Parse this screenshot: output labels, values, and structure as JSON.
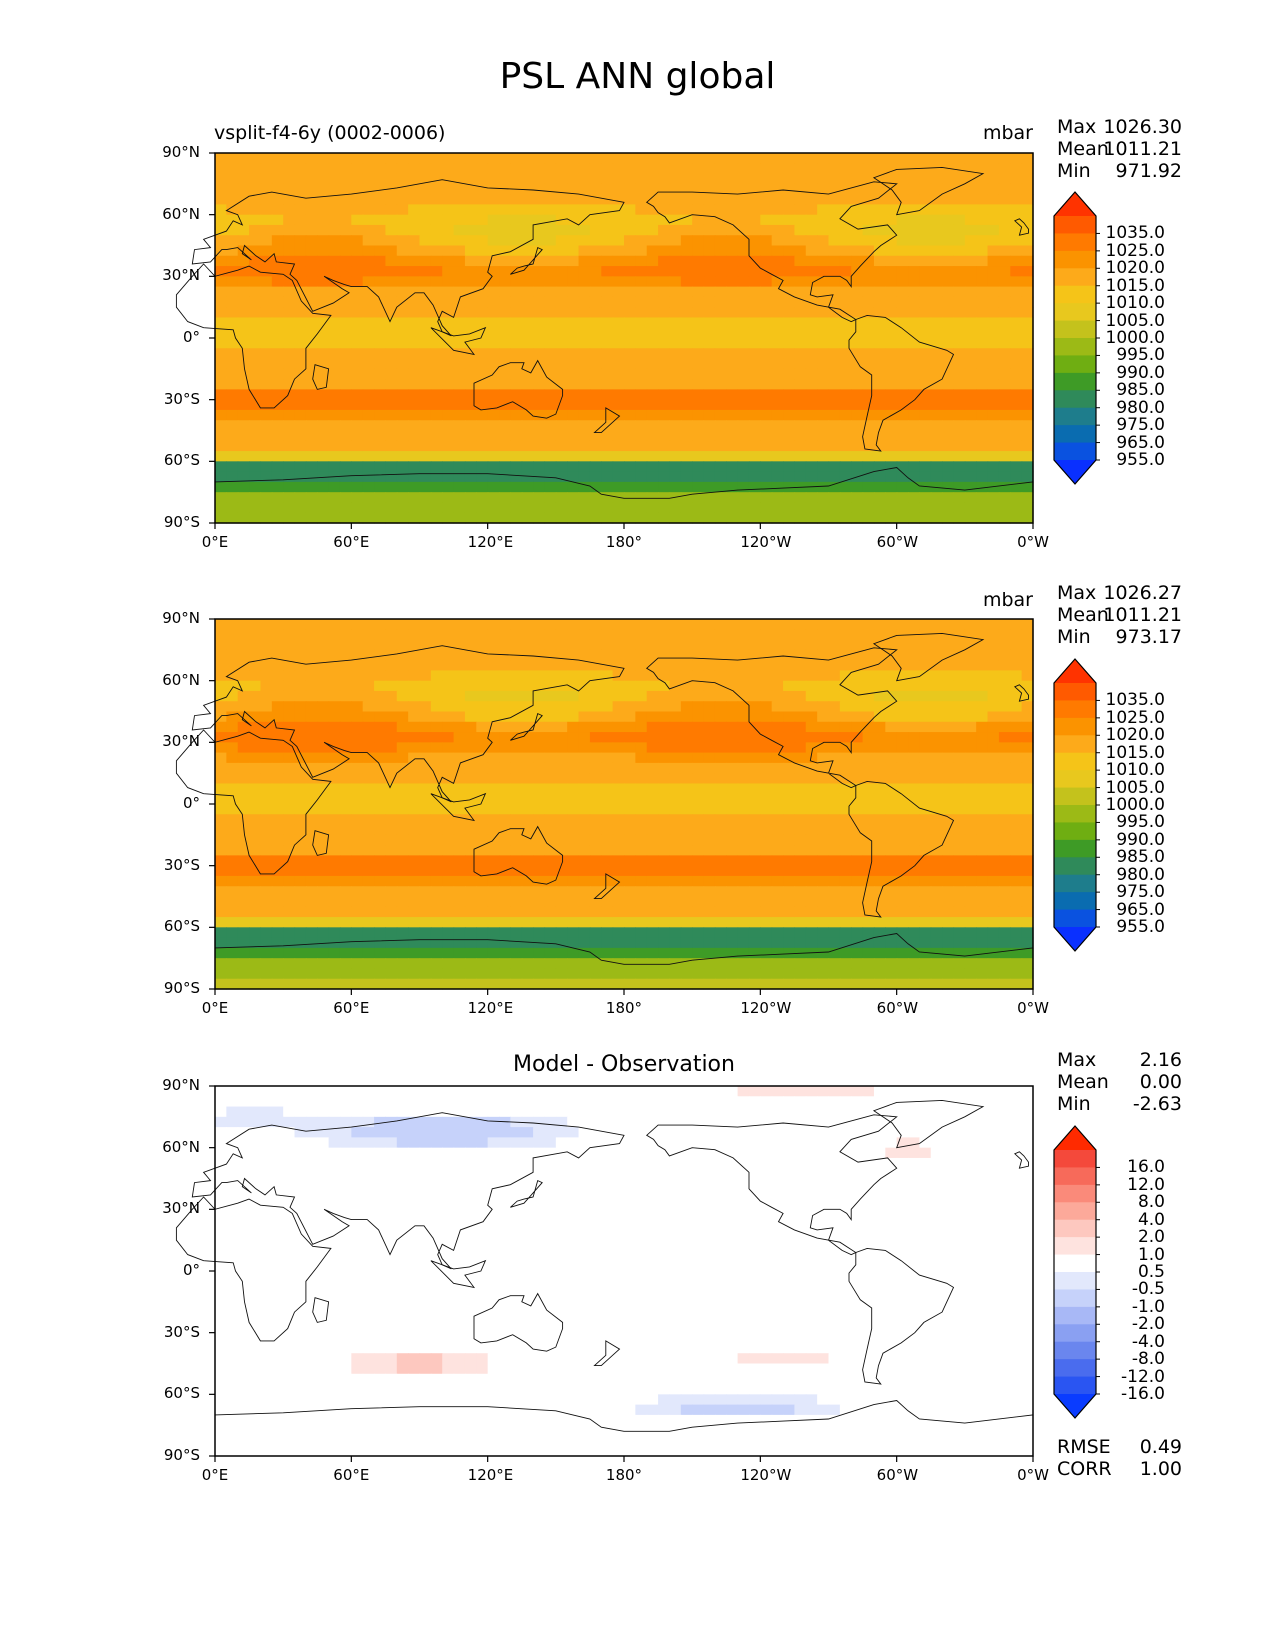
{
  "title": "PSL ANN global",
  "x_ticks": [
    "0°E",
    "60°E",
    "120°E",
    "180°",
    "120°W",
    "60°W",
    "0°W"
  ],
  "y_ticks": [
    "90°N",
    "60°N",
    "30°N",
    "0°",
    "30°S",
    "60°S",
    "90°S"
  ],
  "panels": [
    {
      "subtitle_left": "vsplit-f4-6y (0002-0006)",
      "units": "mbar",
      "stats": [
        {
          "label": "Max",
          "value": "1026.30"
        },
        {
          "label": "Mean",
          "value": "1011.21"
        },
        {
          "label": "Min",
          "value": "971.92"
        }
      ],
      "colorbar": {
        "ticks": [
          "1035.0",
          "1025.0",
          "1020.0",
          "1015.0",
          "1010.0",
          "1005.0",
          "1000.0",
          "995.0",
          "990.0",
          "985.0",
          "980.0",
          "975.0",
          "965.0",
          "955.0"
        ],
        "colors": [
          "#ff3300",
          "#ff5a00",
          "#ff7a00",
          "#fb9300",
          "#fdaa1a",
          "#f5c418",
          "#e8c81e",
          "#c4c21c",
          "#9cba16",
          "#6fae12",
          "#3e9b26",
          "#2f8a5a",
          "#1e7d8c",
          "#0a6cb0",
          "#0a52e0",
          "#0a30ff"
        ]
      },
      "field": "psl_model"
    },
    {
      "subtitle_left": "",
      "units": "mbar",
      "stats": [
        {
          "label": "Max",
          "value": "1026.27"
        },
        {
          "label": "Mean",
          "value": "1011.21"
        },
        {
          "label": "Min",
          "value": "973.17"
        }
      ],
      "colorbar": {
        "ticks": [
          "1035.0",
          "1025.0",
          "1020.0",
          "1015.0",
          "1010.0",
          "1005.0",
          "1000.0",
          "995.0",
          "990.0",
          "985.0",
          "980.0",
          "975.0",
          "965.0",
          "955.0"
        ],
        "colors": [
          "#ff3300",
          "#ff5a00",
          "#ff7a00",
          "#fb9300",
          "#fdaa1a",
          "#f5c418",
          "#e8c81e",
          "#c4c21c",
          "#9cba16",
          "#6fae12",
          "#3e9b26",
          "#2f8a5a",
          "#1e7d8c",
          "#0a6cb0",
          "#0a52e0",
          "#0a30ff"
        ]
      },
      "field": "psl_obs"
    },
    {
      "subtitle_center": "Model - Observation",
      "units": "",
      "stats": [
        {
          "label": "Max",
          "value": "2.16"
        },
        {
          "label": "Mean",
          "value": "0.00"
        },
        {
          "label": "Min",
          "value": "-2.63"
        }
      ],
      "extra_stats": [
        {
          "label": "RMSE",
          "value": "0.49"
        },
        {
          "label": "CORR",
          "value": "1.00"
        }
      ],
      "colorbar": {
        "ticks": [
          "16.0",
          "12.0",
          "8.0",
          "4.0",
          "2.0",
          "1.0",
          "0.5",
          "-0.5",
          "-1.0",
          "-2.0",
          "-4.0",
          "-8.0",
          "-12.0",
          "-16.0"
        ],
        "colors": [
          "#ff2a00",
          "#f4493b",
          "#f76a5a",
          "#fa8a7a",
          "#fca99a",
          "#fdc8bf",
          "#fee3df",
          "#ffffff",
          "#e2e8fc",
          "#c6d2fa",
          "#a8b8f6",
          "#8aa0f2",
          "#6a86ee",
          "#4a6cee",
          "#2a55f2",
          "#0a3cff"
        ]
      },
      "field": "psl_diff"
    }
  ]
}
